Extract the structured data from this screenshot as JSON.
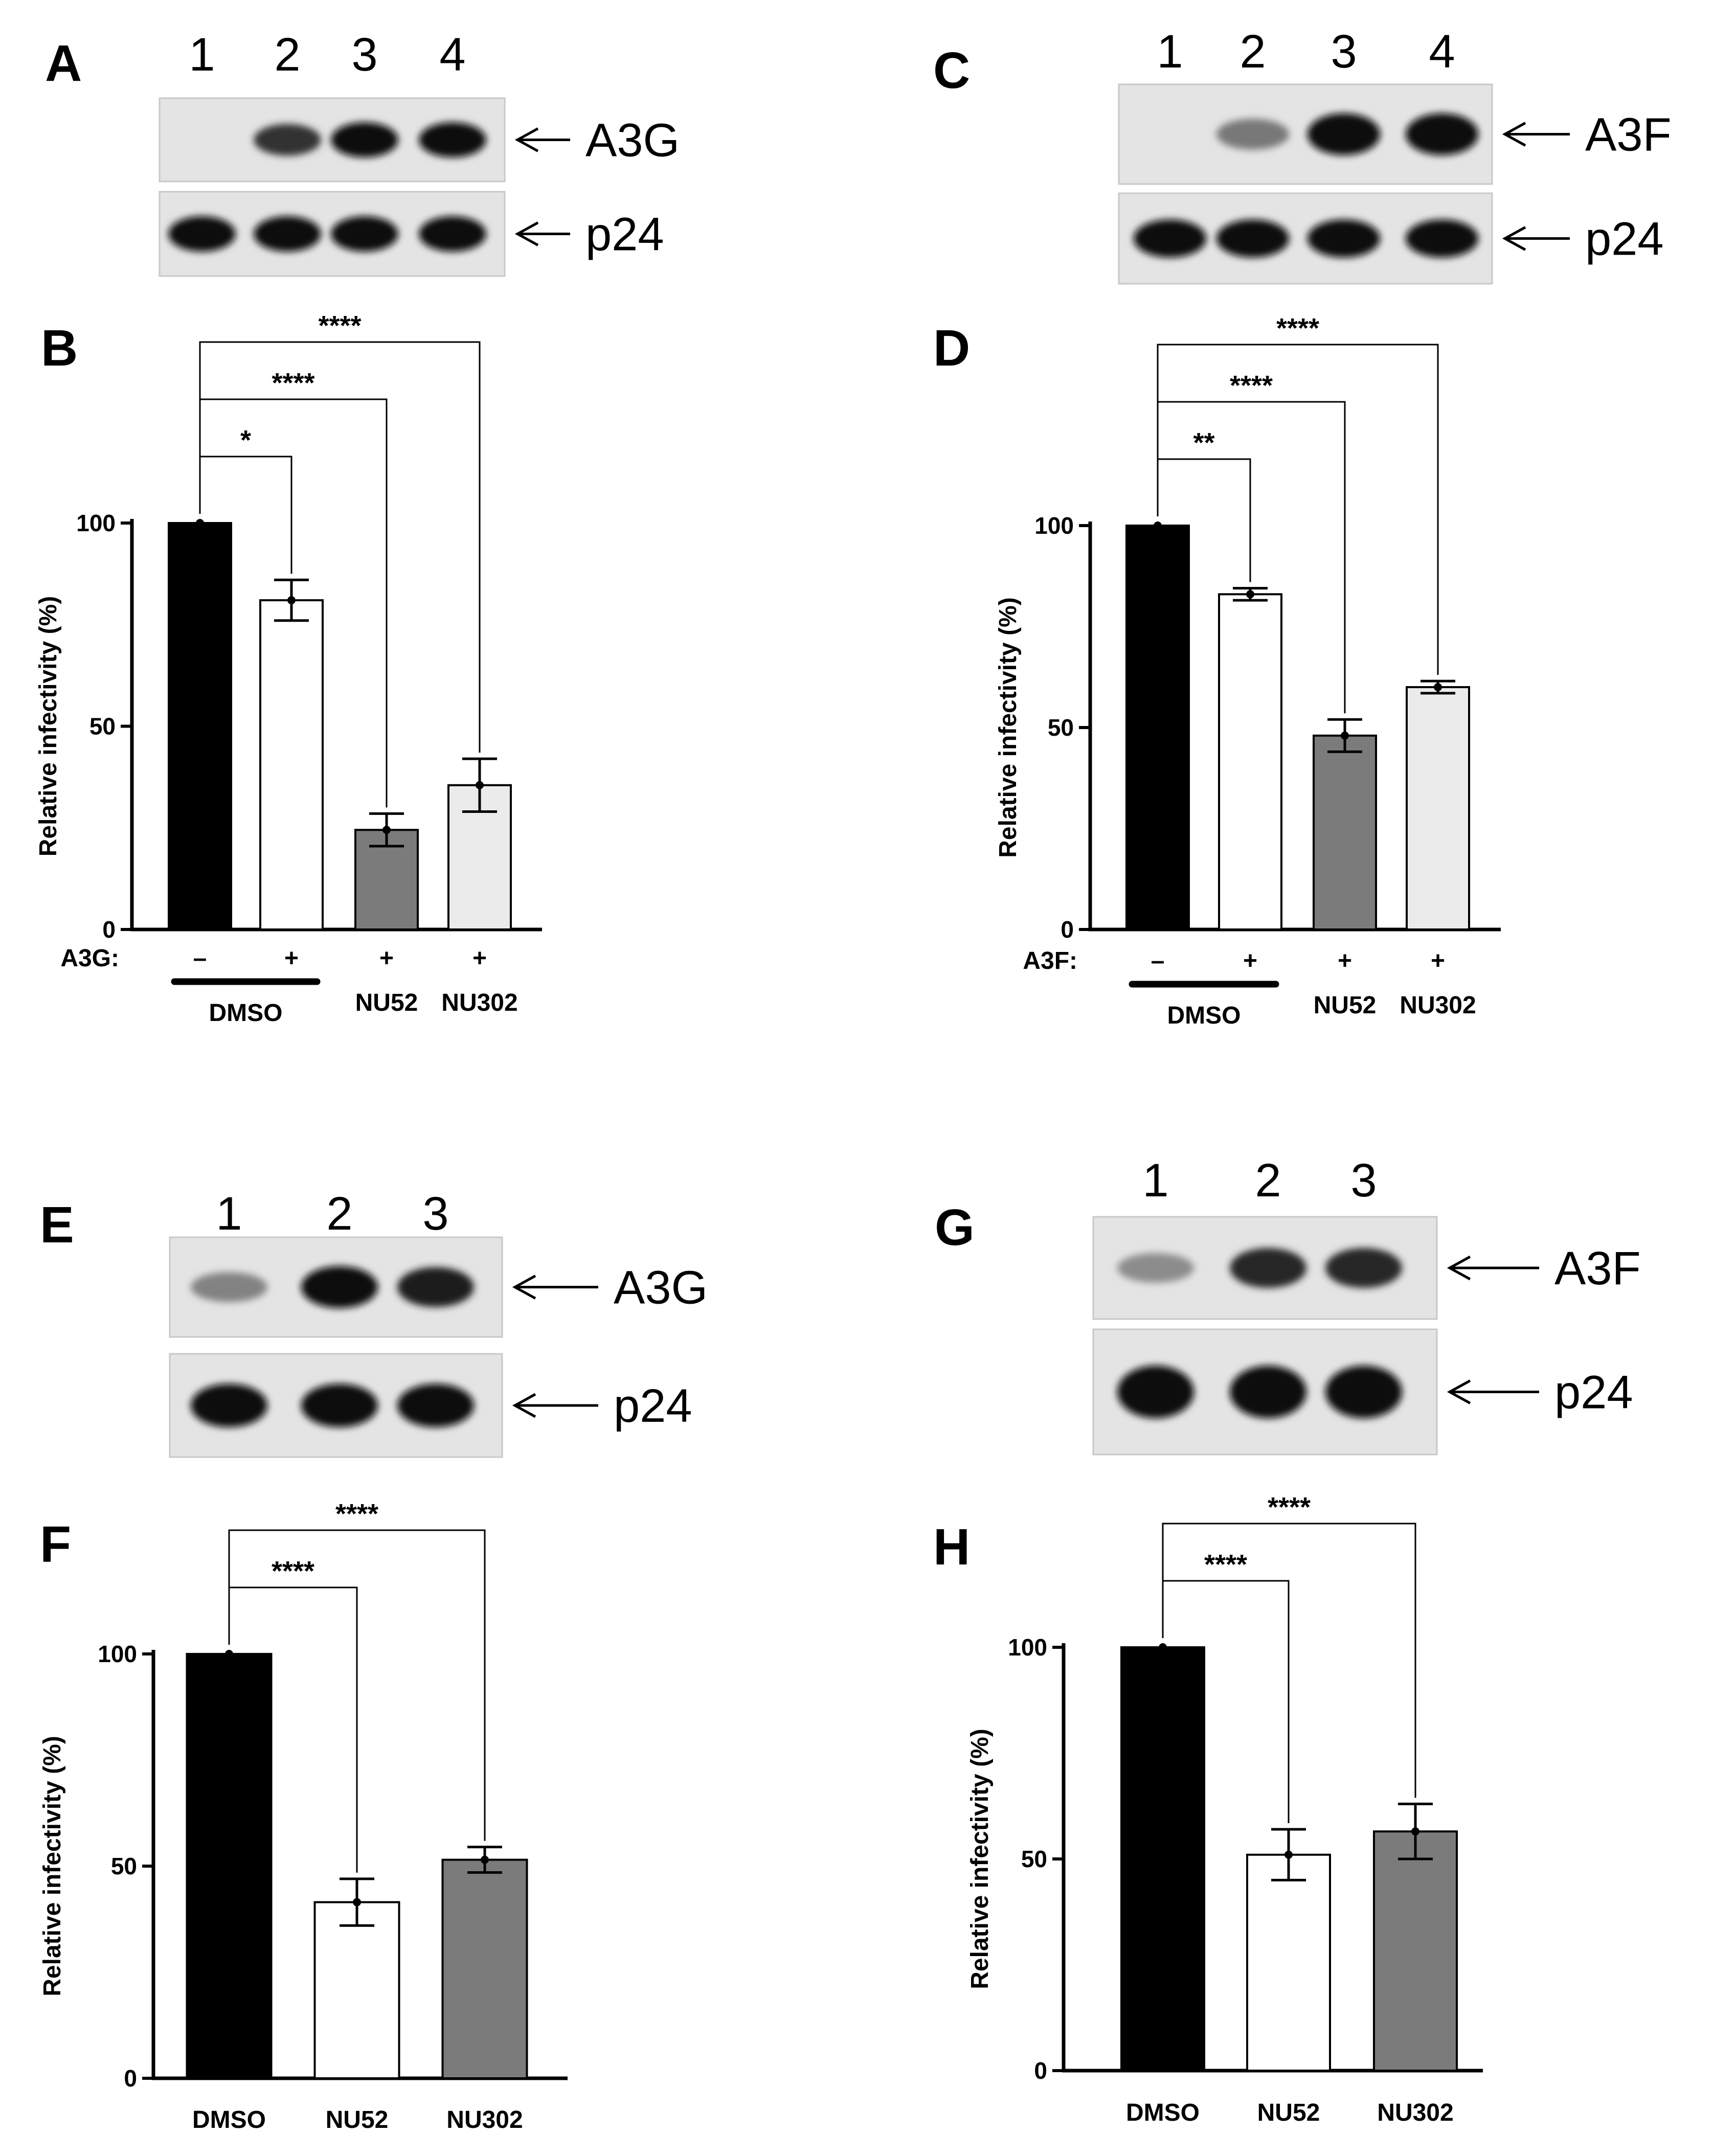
{
  "blots": [
    {
      "panel": "A",
      "lanes": [
        "1",
        "2",
        "3",
        "4"
      ],
      "rows": [
        {
          "protein": "A3G",
          "intensity": [
            0,
            0.8,
            1.0,
            1.0
          ]
        },
        {
          "protein": "p24",
          "intensity": [
            1.0,
            1.0,
            1.0,
            1.0
          ]
        }
      ]
    },
    {
      "panel": "C",
      "lanes": [
        "1",
        "2",
        "3",
        "4"
      ],
      "rows": [
        {
          "protein": "A3F",
          "intensity": [
            0,
            0.45,
            1.0,
            1.0
          ]
        },
        {
          "protein": "p24",
          "intensity": [
            1.0,
            1.0,
            1.0,
            1.0
          ]
        }
      ]
    },
    {
      "panel": "E",
      "lanes": [
        "1",
        "2",
        "3"
      ],
      "rows": [
        {
          "protein": "A3G",
          "intensity": [
            0.4,
            1.0,
            0.9
          ]
        },
        {
          "protein": "p24",
          "intensity": [
            1.0,
            1.0,
            1.0
          ]
        }
      ]
    },
    {
      "panel": "G",
      "lanes": [
        "1",
        "2",
        "3"
      ],
      "rows": [
        {
          "protein": "A3F",
          "intensity": [
            0.35,
            0.85,
            0.85
          ]
        },
        {
          "protein": "p24",
          "intensity": [
            1.0,
            1.0,
            1.0
          ]
        }
      ]
    }
  ],
  "chart_data": [
    {
      "panel": "B",
      "type": "bar",
      "ylabel": "Relative infectivity (%)",
      "ylim": [
        0,
        100
      ],
      "yticks": [
        0,
        50,
        100
      ],
      "row_label": "A3G:",
      "signs": [
        "–",
        "+",
        "+",
        "+"
      ],
      "categories": [
        "DMSO",
        "DMSO",
        "NU52",
        "NU302"
      ],
      "bar_labels": [
        {
          "text": "DMSO",
          "bars": [
            0,
            1
          ]
        },
        {
          "text": "NU52",
          "bars": [
            2
          ]
        },
        {
          "text": "NU302",
          "bars": [
            3
          ]
        }
      ],
      "values": [
        100,
        81,
        24.5,
        35.5
      ],
      "errors": [
        0,
        5,
        4,
        6.5
      ],
      "colors": [
        "#000000",
        "#ffffff",
        "#7b7b7b",
        "#ebebeb"
      ],
      "significance": [
        {
          "from": 0,
          "to": 1,
          "label": "*"
        },
        {
          "from": 0,
          "to": 2,
          "label": "****"
        },
        {
          "from": 0,
          "to": 3,
          "label": "****"
        }
      ]
    },
    {
      "panel": "D",
      "type": "bar",
      "ylabel": "Relative infectivity (%)",
      "ylim": [
        0,
        100
      ],
      "yticks": [
        0,
        50,
        100
      ],
      "row_label": "A3F:",
      "signs": [
        "–",
        "+",
        "+",
        "+"
      ],
      "categories": [
        "DMSO",
        "DMSO",
        "NU52",
        "NU302"
      ],
      "bar_labels": [
        {
          "text": "DMSO",
          "bars": [
            0,
            1
          ]
        },
        {
          "text": "NU52",
          "bars": [
            2
          ]
        },
        {
          "text": "NU302",
          "bars": [
            3
          ]
        }
      ],
      "values": [
        100,
        83,
        48,
        60
      ],
      "errors": [
        0,
        1.5,
        4,
        1.5
      ],
      "colors": [
        "#000000",
        "#ffffff",
        "#7b7b7b",
        "#ebebeb"
      ],
      "significance": [
        {
          "from": 0,
          "to": 1,
          "label": "**"
        },
        {
          "from": 0,
          "to": 2,
          "label": "****"
        },
        {
          "from": 0,
          "to": 3,
          "label": "****"
        }
      ]
    },
    {
      "panel": "F",
      "type": "bar",
      "ylabel": "Relative infectivity (%)",
      "ylim": [
        0,
        100
      ],
      "yticks": [
        0,
        50,
        100
      ],
      "categories": [
        "DMSO",
        "NU52",
        "NU302"
      ],
      "values": [
        100,
        41.5,
        51.5
      ],
      "errors": [
        0,
        5.5,
        3
      ],
      "colors": [
        "#000000",
        "#ffffff",
        "#7b7b7b"
      ],
      "significance": [
        {
          "from": 0,
          "to": 1,
          "label": "****"
        },
        {
          "from": 0,
          "to": 2,
          "label": "****"
        }
      ]
    },
    {
      "panel": "H",
      "type": "bar",
      "ylabel": "Relative infectivity (%)",
      "ylim": [
        0,
        100
      ],
      "yticks": [
        0,
        50,
        100
      ],
      "categories": [
        "DMSO",
        "NU52",
        "NU302"
      ],
      "values": [
        100,
        51,
        56.5
      ],
      "errors": [
        0,
        6,
        6.5
      ],
      "colors": [
        "#000000",
        "#ffffff",
        "#7b7b7b"
      ],
      "significance": [
        {
          "from": 0,
          "to": 1,
          "label": "****"
        },
        {
          "from": 0,
          "to": 2,
          "label": "****"
        }
      ]
    }
  ]
}
